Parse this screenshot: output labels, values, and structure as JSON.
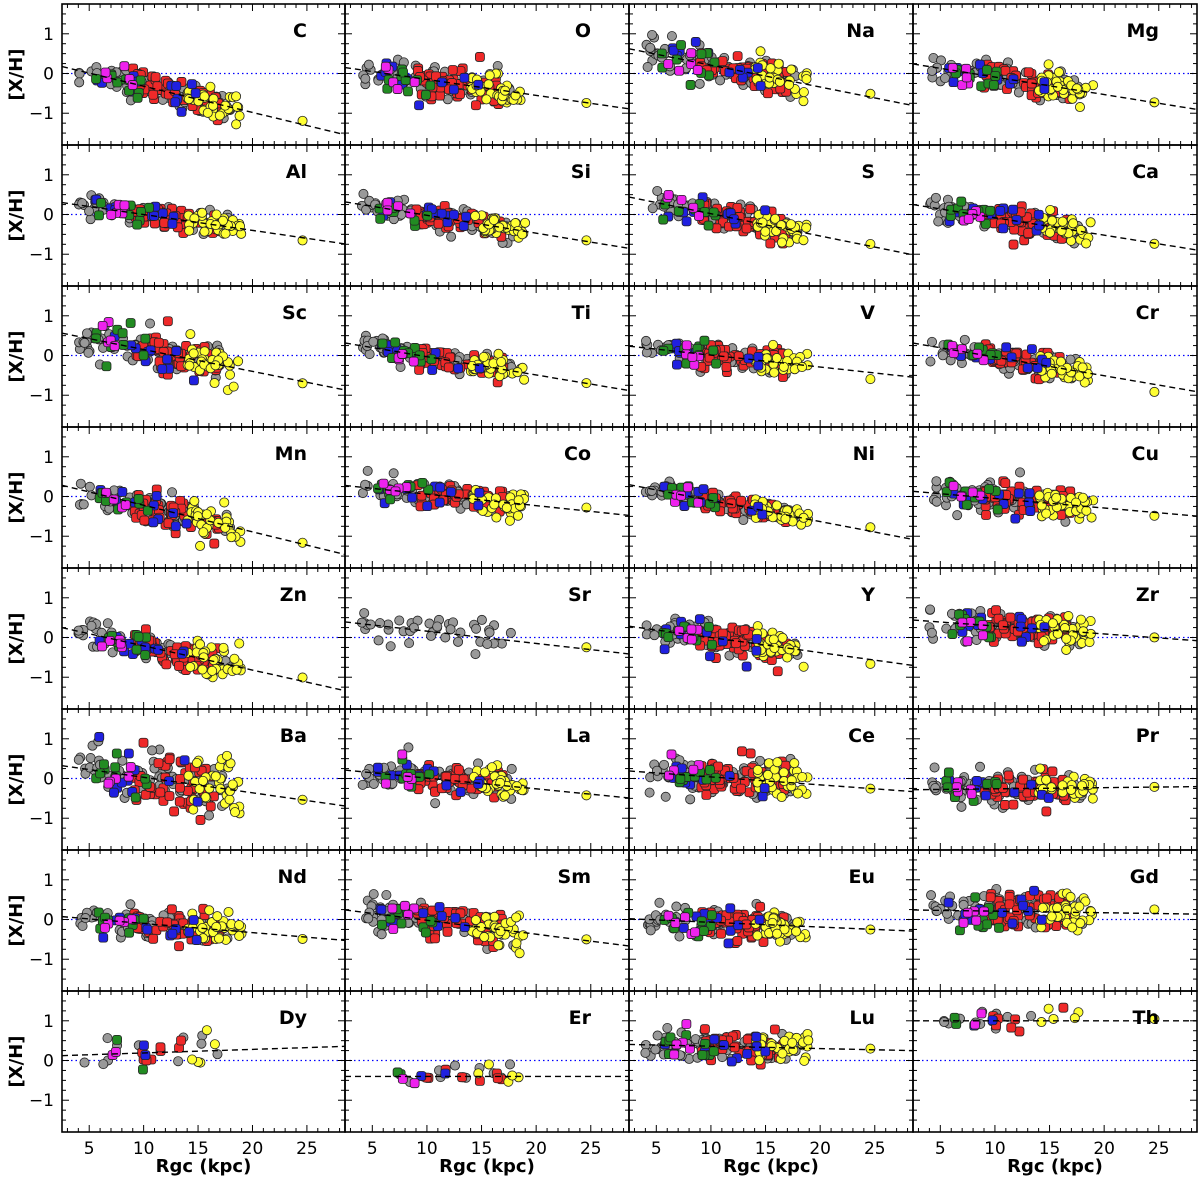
{
  "figure": {
    "ylabel": "[X/H]",
    "xlabel": "Rgc (kpc)"
  },
  "chart_data": {
    "type": "scatter",
    "xlim": [
      2.5,
      28.5
    ],
    "ylim": [
      -1.8,
      1.75
    ],
    "xticks": [
      5,
      10,
      15,
      20,
      25
    ],
    "yticks": [
      -1,
      0,
      1
    ],
    "reference_line": {
      "y": 0,
      "style": "dotted",
      "color": "#0000ff"
    },
    "series": [
      {
        "name": "grey sample",
        "color": "#999999",
        "xrange": [
          4,
          18
        ]
      },
      {
        "name": "red sample",
        "color": "#ef2929",
        "xrange": [
          9,
          17
        ]
      },
      {
        "name": "yellow sample",
        "color": "#ffff33",
        "xrange": [
          14,
          19
        ]
      },
      {
        "name": "blue sample",
        "color": "#2020e0",
        "xrange": [
          5.5,
          15
        ]
      },
      {
        "name": "green sample",
        "color": "#228b22",
        "xrange": [
          5.5,
          10.5
        ]
      },
      {
        "name": "magenta sample",
        "color": "#ee22ee",
        "xrange": [
          6,
          9
        ]
      }
    ],
    "panels": [
      {
        "element": "C",
        "slope": -0.066,
        "intercept": 0.34,
        "scatter": 0.18
      },
      {
        "element": "O",
        "slope": -0.04,
        "intercept": 0.25,
        "scatter": 0.2
      },
      {
        "element": "Na",
        "slope": -0.055,
        "intercept": 0.76,
        "scatter": 0.2
      },
      {
        "element": "Mg",
        "slope": -0.044,
        "intercept": 0.35,
        "scatter": 0.17
      },
      {
        "element": "Al",
        "slope": -0.04,
        "intercept": 0.4,
        "scatter": 0.15
      },
      {
        "element": "Si",
        "slope": -0.045,
        "intercept": 0.43,
        "scatter": 0.13
      },
      {
        "element": "S",
        "slope": -0.056,
        "intercept": 0.58,
        "scatter": 0.17
      },
      {
        "element": "Ca",
        "slope": -0.044,
        "intercept": 0.36,
        "scatter": 0.16
      },
      {
        "element": "Sc",
        "slope": -0.055,
        "intercept": 0.7,
        "scatter": 0.25
      },
      {
        "element": "Ti",
        "slope": -0.046,
        "intercept": 0.43,
        "scatter": 0.15
      },
      {
        "element": "V",
        "slope": -0.03,
        "intercept": 0.31,
        "scatter": 0.15
      },
      {
        "element": "Cr",
        "slope": -0.047,
        "intercept": 0.43,
        "scatter": 0.15
      },
      {
        "element": "Mn",
        "slope": -0.067,
        "intercept": 0.45,
        "scatter": 0.2
      },
      {
        "element": "Co",
        "slope": -0.029,
        "intercept": 0.35,
        "scatter": 0.17
      },
      {
        "element": "Ni",
        "slope": -0.053,
        "intercept": 0.43,
        "scatter": 0.12
      },
      {
        "element": "Cu",
        "slope": -0.024,
        "intercept": 0.19,
        "scatter": 0.2
      },
      {
        "element": "Zn",
        "slope": -0.061,
        "intercept": 0.4,
        "scatter": 0.18
      },
      {
        "element": "Sr",
        "slope": -0.031,
        "intercept": 0.47,
        "scatter": 0.22
      },
      {
        "element": "Y",
        "slope": -0.038,
        "intercept": 0.38,
        "scatter": 0.2
      },
      {
        "element": "Zr",
        "slope": -0.02,
        "intercept": 0.49,
        "scatter": 0.2
      },
      {
        "element": "Ba",
        "slope": -0.039,
        "intercept": 0.42,
        "scatter": 0.32
      },
      {
        "element": "La",
        "slope": -0.027,
        "intercept": 0.28,
        "scatter": 0.22
      },
      {
        "element": "Ce",
        "slope": -0.02,
        "intercept": 0.24,
        "scatter": 0.22
      },
      {
        "element": "Pr",
        "slope": 0.003,
        "intercept": -0.29,
        "scatter": 0.2
      },
      {
        "element": "Nd",
        "slope": -0.023,
        "intercept": 0.13,
        "scatter": 0.18
      },
      {
        "element": "Sm",
        "slope": -0.035,
        "intercept": 0.33,
        "scatter": 0.22
      },
      {
        "element": "Eu",
        "slope": -0.012,
        "intercept": 0.05,
        "scatter": 0.2
      },
      {
        "element": "Gd",
        "slope": -0.004,
        "intercept": 0.25,
        "scatter": 0.25
      },
      {
        "element": "Dy",
        "slope": 0.009,
        "intercept": 0.1,
        "scatter": 0.22,
        "sparse": true
      },
      {
        "element": "Er",
        "slope": 0.0,
        "intercept": -0.4,
        "scatter": 0.15,
        "sparse": true
      },
      {
        "element": "Lu",
        "slope": -0.006,
        "intercept": 0.42,
        "scatter": 0.18
      },
      {
        "element": "Th",
        "slope": 0.0,
        "intercept": 1.0,
        "scatter": 0.15,
        "sparse": true
      }
    ]
  }
}
